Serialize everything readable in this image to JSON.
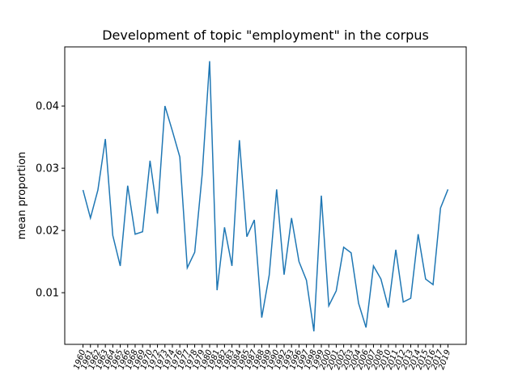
{
  "chart_data": {
    "type": "line",
    "title": "Development of topic \"employment\" in the corpus",
    "ylabel": "mean proportion",
    "categories": [
      "1960",
      "1961",
      "1962",
      "1963",
      "1964",
      "1965",
      "1966",
      "1968",
      "1969",
      "1970",
      "1972",
      "1973",
      "1974",
      "1976",
      "1977",
      "1978",
      "1979",
      "1980",
      "1981",
      "1982",
      "1983",
      "1984",
      "1985",
      "1987",
      "1988",
      "1989",
      "1990",
      "1992",
      "1993",
      "1996",
      "1997",
      "1998",
      "1999",
      "2000",
      "2001",
      "2002",
      "2003",
      "2004",
      "2006",
      "2007",
      "2008",
      "2010",
      "2011",
      "2012",
      "2013",
      "2014",
      "2015",
      "2016",
      "2017",
      "2019"
    ],
    "series": [
      {
        "name": "employment",
        "color": "#1f77b4",
        "values": [
          0.0265,
          0.022,
          0.0265,
          0.0347,
          0.0192,
          0.0143,
          0.0272,
          0.0194,
          0.0198,
          0.0312,
          0.0227,
          0.04,
          0.036,
          0.0318,
          0.014,
          0.0165,
          0.029,
          0.0472,
          0.0104,
          0.0205,
          0.0143,
          0.0345,
          0.019,
          0.0217,
          0.006,
          0.0128,
          0.0266,
          0.0129,
          0.022,
          0.015,
          0.012,
          0.0038,
          0.0256,
          0.0079,
          0.0103,
          0.0173,
          0.0164,
          0.0083,
          0.0044,
          0.0143,
          0.0122,
          0.0076,
          0.0169,
          0.0085,
          0.0091,
          0.0194,
          0.0122,
          0.0113,
          0.0236,
          0.0266
        ]
      }
    ],
    "ylim": [
      0.0017,
      0.0495
    ],
    "yticks": [
      0.01,
      0.02,
      0.03,
      0.04
    ]
  }
}
